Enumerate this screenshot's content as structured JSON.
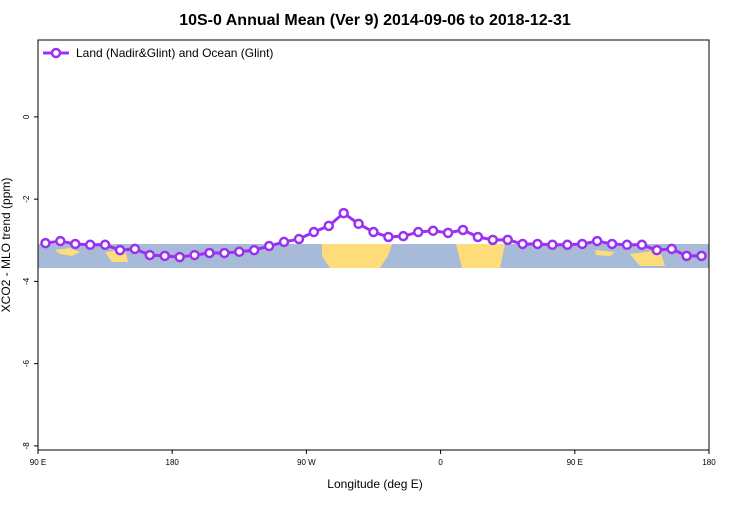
{
  "chart_data": {
    "type": "line",
    "title": "10S-0 Annual Mean (Ver 9)   2014-09-06 to 2018-12-31",
    "x_label": "Longitude (deg E)",
    "y_label": "XCO2 - MLO trend (ppm)",
    "x": [
      95,
      105,
      115,
      125,
      135,
      145,
      155,
      165,
      175,
      185,
      195,
      205,
      215,
      225,
      235,
      245,
      255,
      265,
      275,
      285,
      295,
      305,
      315,
      325,
      335,
      345,
      355,
      365,
      375,
      385,
      395,
      405,
      415,
      425,
      435,
      445,
      455,
      465,
      475,
      485,
      495,
      505,
      515,
      525,
      535
    ],
    "series": [
      {
        "name": "Land (Nadir&Glint) and Ocean (Glint)",
        "color": "#9b30f0",
        "values": [
          -3.07,
          -3.02,
          -3.09,
          -3.11,
          -3.11,
          -3.24,
          -3.21,
          -3.36,
          -3.38,
          -3.41,
          -3.36,
          -3.31,
          -3.31,
          -3.28,
          -3.24,
          -3.14,
          -3.04,
          -2.97,
          -2.8,
          -2.65,
          -2.34,
          -2.6,
          -2.8,
          -2.92,
          -2.9,
          -2.8,
          -2.77,
          -2.82,
          -2.75,
          -2.92,
          -2.99,
          -2.99,
          -3.09,
          -3.09,
          -3.11,
          -3.11,
          -3.09,
          -3.02,
          -3.09,
          -3.11,
          -3.11,
          -3.24,
          -3.21,
          -3.38,
          -3.38
        ]
      }
    ],
    "xlim": [
      90,
      540
    ],
    "xticks": [
      {
        "value": 90,
        "label": "90 E"
      },
      {
        "value": 180,
        "label": "180"
      },
      {
        "value": 270,
        "label": "90 W"
      },
      {
        "value": 360,
        "label": "0"
      },
      {
        "value": 450,
        "label": "90 E"
      },
      {
        "value": 540,
        "label": "180"
      }
    ],
    "ylim": [
      -8.1,
      1.87
    ],
    "yticks": [
      0,
      -2,
      -4,
      -6,
      -8
    ],
    "legend": "top-left"
  }
}
